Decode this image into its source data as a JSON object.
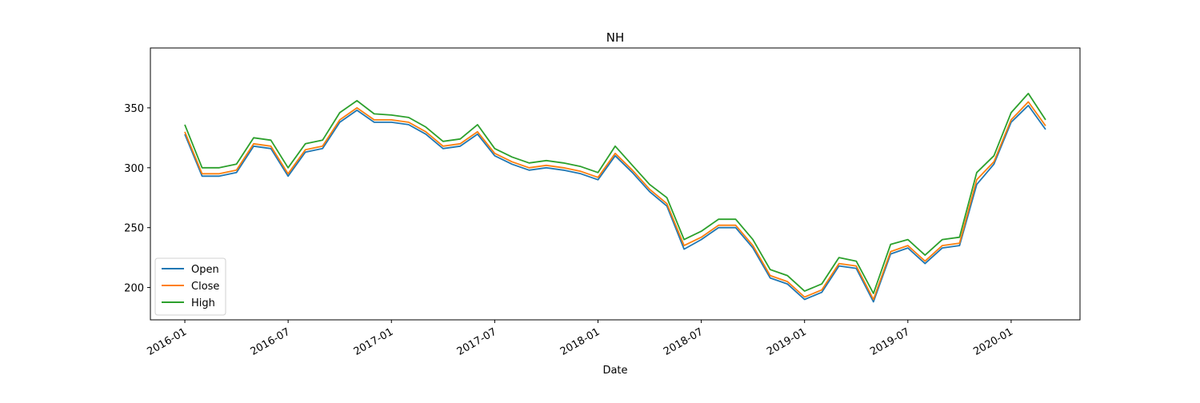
{
  "chart_data": {
    "type": "line",
    "title": "NH",
    "xlabel": "Date",
    "x": [
      "2016-01",
      "2016-02",
      "2016-03",
      "2016-04",
      "2016-05",
      "2016-06",
      "2016-07",
      "2016-08",
      "2016-09",
      "2016-10",
      "2016-11",
      "2016-12",
      "2017-01",
      "2017-02",
      "2017-03",
      "2017-04",
      "2017-05",
      "2017-06",
      "2017-07",
      "2017-08",
      "2017-09",
      "2017-10",
      "2017-11",
      "2017-12",
      "2018-01",
      "2018-02",
      "2018-03",
      "2018-04",
      "2018-05",
      "2018-06",
      "2018-07",
      "2018-08",
      "2018-09",
      "2018-10",
      "2018-11",
      "2018-12",
      "2019-01",
      "2019-02",
      "2019-03",
      "2019-04",
      "2019-05",
      "2019-06",
      "2019-07",
      "2019-08",
      "2019-09",
      "2019-10",
      "2019-11",
      "2019-12",
      "2020-01",
      "2020-02",
      "2020-03"
    ],
    "series": [
      {
        "name": "Open",
        "color": "#1f77b4",
        "values": [
          328,
          293,
          293,
          296,
          318,
          316,
          293,
          313,
          316,
          338,
          348,
          338,
          338,
          336,
          328,
          316,
          318,
          328,
          310,
          303,
          298,
          300,
          298,
          295,
          290,
          310,
          296,
          280,
          268,
          232,
          240,
          250,
          250,
          233,
          208,
          203,
          190,
          196,
          218,
          216,
          188,
          228,
          233,
          220,
          233,
          235,
          286,
          303,
          338,
          352,
          332
        ]
      },
      {
        "name": "Close",
        "color": "#ff7f0e",
        "values": [
          330,
          295,
          295,
          298,
          320,
          318,
          295,
          315,
          318,
          340,
          350,
          340,
          340,
          338,
          330,
          318,
          320,
          330,
          312,
          305,
          300,
          302,
          300,
          297,
          292,
          312,
          298,
          282,
          270,
          235,
          242,
          252,
          252,
          235,
          210,
          205,
          192,
          198,
          220,
          218,
          190,
          230,
          235,
          222,
          235,
          237,
          290,
          305,
          340,
          355,
          335
        ]
      },
      {
        "name": "High",
        "color": "#2ca02c",
        "values": [
          336,
          300,
          300,
          303,
          325,
          323,
          300,
          320,
          323,
          346,
          356,
          345,
          344,
          342,
          334,
          322,
          324,
          336,
          316,
          309,
          304,
          306,
          304,
          301,
          296,
          318,
          302,
          286,
          275,
          240,
          247,
          257,
          257,
          240,
          215,
          210,
          197,
          203,
          225,
          222,
          195,
          236,
          240,
          227,
          240,
          242,
          296,
          310,
          346,
          362,
          340
        ]
      }
    ],
    "xlim": [
      "2015-11",
      "2020-05"
    ],
    "xticks": [
      "2016-01",
      "2016-07",
      "2017-01",
      "2017-07",
      "2018-01",
      "2018-07",
      "2019-01",
      "2019-07",
      "2020-01"
    ],
    "ylim": [
      173,
      400
    ],
    "yticks": [
      200,
      250,
      300,
      350
    ],
    "legend": "lower left",
    "grid": false
  }
}
